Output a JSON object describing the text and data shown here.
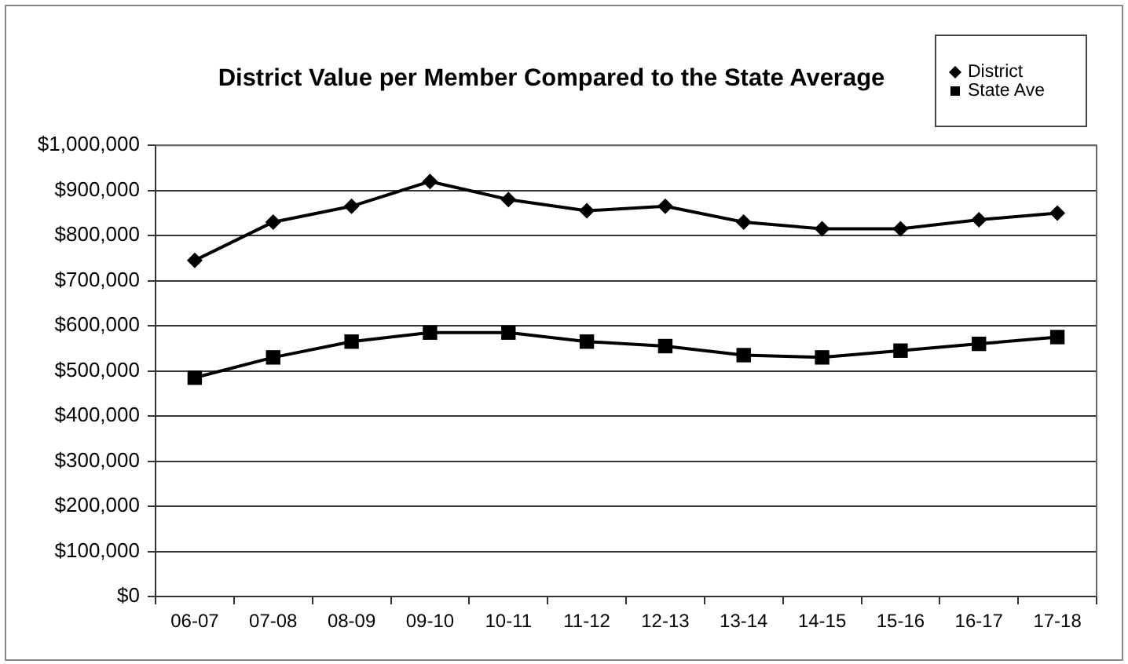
{
  "chart_data": {
    "type": "line",
    "title": "District Value per Member Compared to the State Average",
    "categories": [
      "06-07",
      "07-08",
      "08-09",
      "09-10",
      "10-11",
      "11-12",
      "12-13",
      "13-14",
      "14-15",
      "15-16",
      "16-17",
      "17-18"
    ],
    "series": [
      {
        "name": "District",
        "color": "#000000",
        "marker": "diamond",
        "values": [
          745000,
          830000,
          865000,
          920000,
          880000,
          855000,
          865000,
          830000,
          815000,
          815000,
          835000,
          850000
        ]
      },
      {
        "name": "State Ave",
        "color": "#000000",
        "marker": "square",
        "values": [
          485000,
          530000,
          565000,
          585000,
          585000,
          565000,
          555000,
          535000,
          530000,
          545000,
          560000,
          575000
        ]
      }
    ],
    "ylim": [
      0,
      1000000
    ],
    "yticks": [
      {
        "value": 0,
        "label": "$0"
      },
      {
        "value": 100000,
        "label": "$100,000"
      },
      {
        "value": 200000,
        "label": "$200,000"
      },
      {
        "value": 300000,
        "label": "$300,000"
      },
      {
        "value": 400000,
        "label": "$400,000"
      },
      {
        "value": 500000,
        "label": "$500,000"
      },
      {
        "value": 600000,
        "label": "$600,000"
      },
      {
        "value": 700000,
        "label": "$700,000"
      },
      {
        "value": 800000,
        "label": "$800,000"
      },
      {
        "value": 900000,
        "label": "$900,000"
      },
      {
        "value": 1000000,
        "label": "$1,000,000"
      }
    ],
    "grid": "y",
    "legend": "top right",
    "line_style": "solid"
  }
}
